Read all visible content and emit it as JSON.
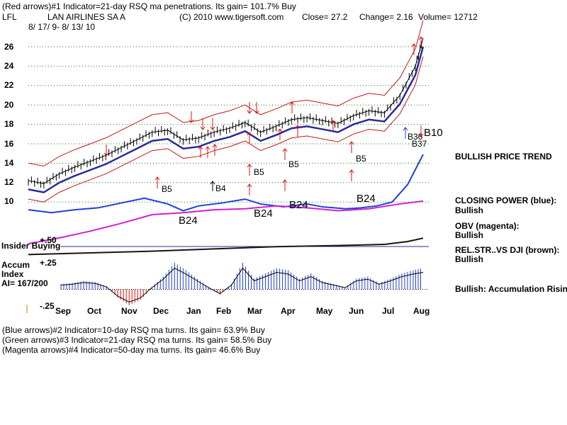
{
  "header": {
    "line1": "(Red arrows)#1 Indicator=21-day RSQ ma penetrations.  Its gain= 101.7% Buy",
    "ticker": "LFL",
    "company": "LAN AIRLINES SA A",
    "copyright": "(C) 2010 www.tigersoft.com",
    "close": "Close=  27.2",
    "change": "Change= 2.16",
    "volume": "Volume= 12712",
    "dates": "8/ 17/ 9-  8/ 13/ 10"
  },
  "chart_data": {
    "type": "line",
    "title": "LAN AIRLINES SA A",
    "price_axis": {
      "ticks": [
        "26",
        "24",
        "22",
        "20",
        "18",
        "16",
        "14",
        "12",
        "10"
      ],
      "ylim": [
        9,
        27
      ]
    },
    "accum_axis": {
      "ticks": [
        "+.50",
        "+.25",
        "-.25"
      ],
      "ylim": [
        -0.3,
        0.55
      ]
    },
    "x_ticks": [
      "Sep",
      "Oct",
      "Nov",
      "Dec",
      "Jan",
      "Feb",
      "Mar",
      "Apr",
      "May",
      "Jun",
      "Jul",
      "Aug"
    ],
    "price": {
      "x": [
        0,
        10,
        20,
        30,
        40,
        50,
        60,
        70,
        80,
        90,
        100,
        110,
        120,
        130,
        140,
        150,
        160,
        170,
        180,
        190,
        200,
        210,
        220,
        230,
        240,
        250,
        255
      ],
      "y": [
        12.2,
        11.9,
        12.9,
        13.6,
        14.2,
        14.8,
        15.6,
        16.4,
        17.2,
        17.4,
        16.4,
        16.6,
        17.2,
        17.6,
        18.2,
        17.2,
        17.8,
        18.5,
        18.7,
        18.4,
        18.1,
        18.9,
        19.4,
        19.2,
        21.0,
        24.0,
        26.9
      ]
    },
    "series": [
      {
        "name": "CLOSING POWER (blue)",
        "color": "#1f3fd8",
        "x": [
          0,
          15,
          30,
          45,
          60,
          75,
          90,
          100,
          110,
          125,
          140,
          150,
          165,
          180,
          190,
          205,
          215,
          225,
          235,
          245,
          255
        ],
        "y": [
          9.2,
          8.9,
          9.2,
          9.4,
          9.9,
          10.4,
          9.8,
          9.1,
          9.6,
          9.9,
          10.3,
          9.8,
          9.5,
          9.8,
          9.5,
          9.3,
          9.4,
          9.6,
          10.0,
          11.8,
          14.9
        ]
      },
      {
        "name": "OBV (magenta)",
        "color": "#d020d0",
        "x": [
          0,
          20,
          40,
          60,
          80,
          100,
          120,
          140,
          160,
          180,
          200,
          220,
          240,
          255
        ],
        "y": [
          5.7,
          6.3,
          7.0,
          7.8,
          8.7,
          8.9,
          9.2,
          9.3,
          9.6,
          9.4,
          9.1,
          9.3,
          9.8,
          10.1
        ]
      },
      {
        "name": "REL.STR..VS DJI (brown)",
        "color": "#201010",
        "x": [
          0,
          40,
          80,
          120,
          160,
          200,
          230,
          245,
          255
        ],
        "y": [
          0.02,
          0.05,
          0.08,
          0.12,
          0.16,
          0.18,
          0.2,
          0.25,
          0.31
        ]
      }
    ],
    "accum_index": {
      "x": [
        0,
        8,
        16,
        24,
        32,
        40,
        48,
        56,
        64,
        72,
        80,
        88,
        96,
        104,
        112,
        120,
        128,
        136,
        144,
        152,
        160,
        168,
        176,
        184,
        192,
        200,
        208,
        216,
        224,
        232,
        240,
        248,
        255
      ],
      "y": [
        0.05,
        0.06,
        0.08,
        0.07,
        0.03,
        -0.08,
        -0.15,
        -0.1,
        0.02,
        0.12,
        0.25,
        0.18,
        0.1,
        0.02,
        -0.05,
        0.05,
        0.25,
        0.1,
        0.15,
        0.2,
        0.18,
        0.1,
        0.15,
        0.08,
        0.05,
        0.02,
        0.1,
        0.12,
        0.06,
        0.1,
        0.15,
        0.18,
        0.2
      ]
    },
    "arrow_labels": [
      "B5",
      "B5",
      "B5",
      "B5",
      "B4",
      "B24",
      "B24",
      "B24",
      "B24",
      "B36",
      "B37",
      "B10"
    ],
    "legend_placement": "right"
  },
  "labels": {
    "insider": "Insider Buying",
    "accum1": "Accum",
    "accum2": "Index",
    "ai": "AI= 167/200"
  },
  "side": {
    "trend": "BULLISH PRICE TREND",
    "cp": "CLOSING POWER (blue):",
    "cp_val": "Bullish",
    "obv": "OBV (magenta):",
    "obv_val": "Bullish",
    "rs": "REL.STR..VS DJI (brown):",
    "rs_val": "Bullish",
    "acc": "Bullish: Accumulation Rising"
  },
  "footer": {
    "l1": "(Blue arrows)#2 Indicator=10-day RSQ ma turns.  Its gain= 63.9% Buy",
    "l2": "(Green arrows)#3 Indicator=21-day RSQ ma turns.  Its gain= 58.5% Buy",
    "l3": "(Magenta arrows)#4 Indicator=50-day ma turns.  Its gain= 46.6% Buy"
  },
  "colors": {
    "red": "#e01010",
    "blue": "#1f3fd8",
    "magenta": "#d020d0",
    "navy": "#2a2a9a",
    "black": "#000000"
  }
}
